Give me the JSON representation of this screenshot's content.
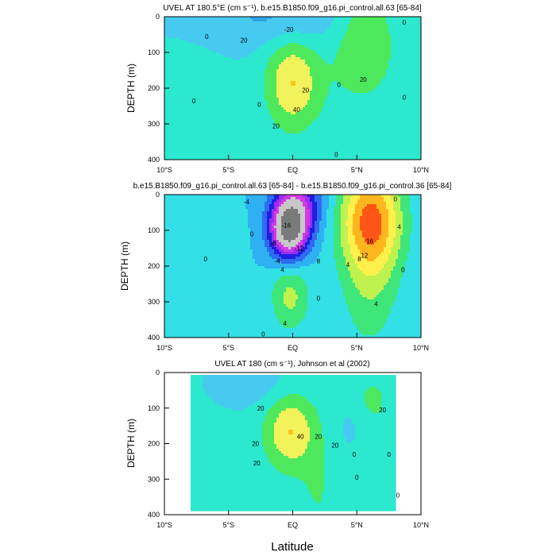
{
  "xlabel": "Latitude",
  "chart_data": [
    {
      "type": "heatmap",
      "title": "UVEL AT 180.5°E (cm s⁻¹), b.e15.B1850.f09_g16.pi_control.all.63 [65-84]",
      "ylabel": "DEPTH (m)",
      "xlim": [
        -10,
        10
      ],
      "ylim": [
        0,
        400
      ],
      "x_tick_labels": [
        "10°S",
        "5°S",
        "EQ",
        "5°N",
        "10°N"
      ],
      "y_ticks": [
        0,
        100,
        200,
        300,
        400
      ],
      "contour_labels": [
        {
          "text": "0",
          "lat": -6.7,
          "depth": 55
        },
        {
          "text": "0",
          "lat": -7.7,
          "depth": 235
        },
        {
          "text": "20",
          "lat": -3.8,
          "depth": 65
        },
        {
          "text": "-20",
          "lat": -0.3,
          "depth": 35
        },
        {
          "text": "0",
          "lat": -2.6,
          "depth": 245
        },
        {
          "text": "20",
          "lat": 1.0,
          "depth": 205
        },
        {
          "text": "40",
          "lat": 0.3,
          "depth": 260
        },
        {
          "text": "20",
          "lat": -1.3,
          "depth": 305
        },
        {
          "text": "0",
          "lat": 3.6,
          "depth": 190
        },
        {
          "text": "20",
          "lat": 5.5,
          "depth": 175
        },
        {
          "text": "0",
          "lat": 8.7,
          "depth": 225
        },
        {
          "text": "0",
          "lat": 8.7,
          "depth": 15
        },
        {
          "text": "0",
          "lat": 3.4,
          "depth": 385
        }
      ],
      "features": [
        {
          "lat": 0.0,
          "depth": 185,
          "amp": 60,
          "sx": 1.5,
          "sy": 95
        },
        {
          "lat": 5.6,
          "depth": 70,
          "amp": 40,
          "sx": 1.8,
          "sy": 120
        },
        {
          "lat": -0.8,
          "depth": 5,
          "amp": -26,
          "sx": 3.8,
          "sy": 55
        },
        {
          "lat": -7.5,
          "depth": 300,
          "amp": 8,
          "sx": 2.2,
          "sy": 140
        },
        {
          "lat": 3.2,
          "depth": 320,
          "amp": 6,
          "sx": 1.2,
          "sy": 120
        }
      ]
    },
    {
      "type": "heatmap",
      "title": "b.e15.B1850.f09_g16.pi_control.all.63 [65-84] - b.e15.B1850.f09_g16.pi_control.36 [65-84]",
      "ylabel": "DEPTH (m)",
      "xlim": [
        -10,
        10
      ],
      "ylim": [
        0,
        400
      ],
      "x_tick_labels": [
        "10°S",
        "5°S",
        "EQ",
        "5°N",
        "10°N"
      ],
      "y_ticks": [
        0,
        100,
        200,
        300,
        400
      ],
      "contour_labels": [
        {
          "text": "-4",
          "lat": -3.6,
          "depth": 20
        },
        {
          "text": "0",
          "lat": -3.2,
          "depth": 110
        },
        {
          "text": "0",
          "lat": -6.8,
          "depth": 180
        },
        {
          "text": "-8",
          "lat": -1.5,
          "depth": 135
        },
        {
          "text": "-4",
          "lat": -1.2,
          "depth": 185
        },
        {
          "text": "-16",
          "lat": -0.5,
          "depth": 85
        },
        {
          "text": "-12",
          "lat": 0.5,
          "depth": 150
        },
        {
          "text": "8",
          "lat": 2.0,
          "depth": 185
        },
        {
          "text": "4",
          "lat": 4.3,
          "depth": 195
        },
        {
          "text": "8",
          "lat": 5.2,
          "depth": 180
        },
        {
          "text": "12",
          "lat": 5.6,
          "depth": 170
        },
        {
          "text": "16",
          "lat": 6.0,
          "depth": 130
        },
        {
          "text": "4",
          "lat": 8.3,
          "depth": 90
        },
        {
          "text": "0",
          "lat": 8.6,
          "depth": 210
        },
        {
          "text": "4",
          "lat": -0.8,
          "depth": 210
        },
        {
          "text": "0",
          "lat": 2.0,
          "depth": 290
        },
        {
          "text": "4",
          "lat": -0.6,
          "depth": 360
        },
        {
          "text": "0",
          "lat": -2.3,
          "depth": 390
        },
        {
          "text": "4",
          "lat": 6.5,
          "depth": 305
        },
        {
          "text": "0",
          "lat": 8.0,
          "depth": 12
        }
      ],
      "features": [
        {
          "lat": -0.3,
          "depth": 100,
          "amp": -30,
          "sx": 1.0,
          "sy": 55
        },
        {
          "lat": 0.4,
          "depth": 30,
          "amp": -14,
          "sx": 1.3,
          "sy": 60
        },
        {
          "lat": 6.1,
          "depth": 75,
          "amp": 22,
          "sx": 1.7,
          "sy": 110
        },
        {
          "lat": 6.0,
          "depth": 310,
          "amp": 5,
          "sx": 1.6,
          "sy": 110
        },
        {
          "lat": -0.2,
          "depth": 285,
          "amp": 9,
          "sx": 1.1,
          "sy": 70
        },
        {
          "lat": -6.3,
          "depth": 120,
          "amp": 2.5,
          "sx": 1.5,
          "sy": 60
        }
      ]
    },
    {
      "type": "heatmap",
      "title": "UVEL AT 180 (cm s⁻¹), Johnson et al (2002)",
      "ylabel": "DEPTH (m)",
      "xlim": [
        -10,
        10
      ],
      "ylim": [
        0,
        400
      ],
      "x_tick_labels": [
        "10°S",
        "5°S",
        "EQ",
        "5°N",
        "10°N"
      ],
      "y_ticks": [
        0,
        100,
        200,
        300,
        400
      ],
      "data_extent": {
        "lat": [
          -8,
          8
        ],
        "depth": [
          10,
          390
        ]
      },
      "contour_labels": [
        {
          "text": "20",
          "lat": -2.5,
          "depth": 100
        },
        {
          "text": "20",
          "lat": -2.9,
          "depth": 200
        },
        {
          "text": "20",
          "lat": -2.8,
          "depth": 255
        },
        {
          "text": "40",
          "lat": 0.6,
          "depth": 180
        },
        {
          "text": "20",
          "lat": 2.0,
          "depth": 180
        },
        {
          "text": "20",
          "lat": 3.3,
          "depth": 205
        },
        {
          "text": "0",
          "lat": 4.8,
          "depth": 230
        },
        {
          "text": "20",
          "lat": 7.0,
          "depth": 105
        },
        {
          "text": "0",
          "lat": 7.5,
          "depth": 230
        },
        {
          "text": "0",
          "lat": 8.2,
          "depth": 345
        },
        {
          "text": "0",
          "lat": 5.0,
          "depth": 295
        }
      ],
      "features": [
        {
          "lat": -0.2,
          "depth": 165,
          "amp": 55,
          "sx": 1.4,
          "sy": 75
        },
        {
          "lat": 6.2,
          "depth": 80,
          "amp": 18,
          "sx": 1.3,
          "sy": 70
        },
        {
          "lat": -3.2,
          "depth": 25,
          "amp": -18,
          "sx": 2.4,
          "sy": 55
        },
        {
          "lat": 2.0,
          "depth": 340,
          "amp": 15,
          "sx": 1.1,
          "sy": 110
        },
        {
          "lat": -5.5,
          "depth": 330,
          "amp": 14,
          "sx": 0.6,
          "sy": 30
        },
        {
          "lat": 4.5,
          "depth": 150,
          "amp": -12,
          "sx": 0.8,
          "sy": 50
        }
      ]
    }
  ]
}
